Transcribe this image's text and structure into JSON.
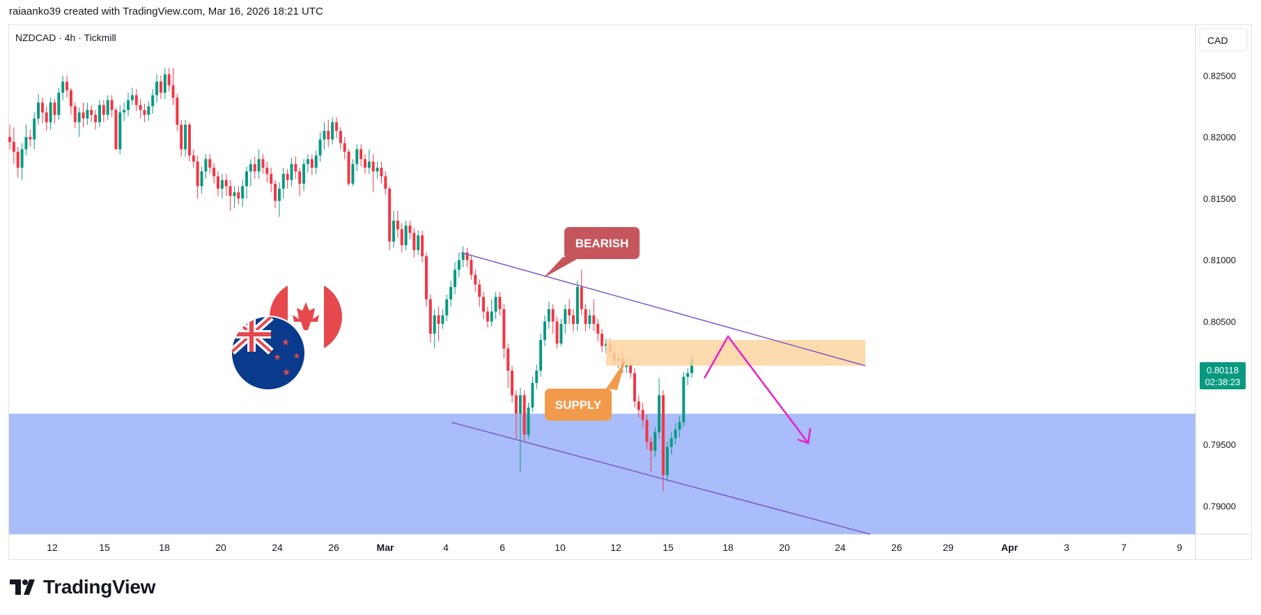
{
  "header": {
    "caption": "raiaanko39 created with TradingView.com, Mar 16, 2026 18:21 UTC"
  },
  "chart_data": {
    "type": "candlestick",
    "symbol_label": "NZDCAD · 4h · Tickmill",
    "currency": "CAD",
    "price_axis": {
      "ticks": [
        "0.82500",
        "0.82000",
        "0.81500",
        "0.81000",
        "0.80500",
        "0.79500",
        "0.79000"
      ],
      "range": [
        0.7877,
        0.8291
      ]
    },
    "time_axis": {
      "ticks": [
        "12",
        "15",
        "18",
        "20",
        "24",
        "26",
        "Mar",
        "4",
        "6",
        "10",
        "12",
        "15",
        "18",
        "20",
        "24",
        "26",
        "29",
        "Apr",
        "3",
        "7",
        "9"
      ]
    },
    "last_price": "0.80118",
    "countdown": "02:38:23",
    "colors": {
      "up": "#089981",
      "down": "#f23645",
      "demand_zone": "#a8bdf9",
      "supply_zone": "#fdd5a0",
      "trendline": "#7e57c2",
      "projection": "#e91ec9",
      "bearish_label": "#c4565c",
      "supply_label": "#f29a4b",
      "price_badge": "#089981"
    },
    "demand_zone": {
      "from": 0.7877,
      "to": 0.7975
    },
    "supply_zone": {
      "from": 0.8014,
      "to": 0.8035
    },
    "candles": [
      [
        0.82,
        0.8196,
        0.821,
        0.819
      ],
      [
        0.8196,
        0.8188,
        0.8208,
        0.8178
      ],
      [
        0.8188,
        0.8175,
        0.8192,
        0.8167
      ],
      [
        0.8175,
        0.819,
        0.8195,
        0.8165
      ],
      [
        0.819,
        0.82,
        0.821,
        0.8185
      ],
      [
        0.82,
        0.8198,
        0.8206,
        0.8192
      ],
      [
        0.8198,
        0.8215,
        0.822,
        0.819
      ],
      [
        0.8215,
        0.8228,
        0.8235,
        0.821
      ],
      [
        0.8228,
        0.822,
        0.8232,
        0.8211
      ],
      [
        0.822,
        0.8212,
        0.8225,
        0.8205
      ],
      [
        0.8212,
        0.8228,
        0.8232,
        0.8206
      ],
      [
        0.8228,
        0.8218,
        0.8231,
        0.8211
      ],
      [
        0.8218,
        0.8236,
        0.824,
        0.8214
      ],
      [
        0.8236,
        0.8245,
        0.825,
        0.823
      ],
      [
        0.8245,
        0.8238,
        0.825,
        0.8232
      ],
      [
        0.8238,
        0.8225,
        0.824,
        0.8218
      ],
      [
        0.8225,
        0.8212,
        0.8228,
        0.8207
      ],
      [
        0.8212,
        0.822,
        0.8224,
        0.82
      ],
      [
        0.822,
        0.8215,
        0.8228,
        0.8208
      ],
      [
        0.8215,
        0.8222,
        0.8228,
        0.821
      ],
      [
        0.8222,
        0.8218,
        0.8226,
        0.8212
      ],
      [
        0.8218,
        0.8212,
        0.8222,
        0.8206
      ],
      [
        0.8212,
        0.8226,
        0.823,
        0.8208
      ],
      [
        0.8226,
        0.8218,
        0.823,
        0.8212
      ],
      [
        0.8218,
        0.823,
        0.8234,
        0.8214
      ],
      [
        0.823,
        0.8222,
        0.8234,
        0.8216
      ],
      [
        0.8222,
        0.819,
        0.8224,
        0.819
      ],
      [
        0.819,
        0.822,
        0.8226,
        0.8186
      ],
      [
        0.822,
        0.8222,
        0.8228,
        0.8213
      ],
      [
        0.8222,
        0.823,
        0.8236,
        0.8217
      ],
      [
        0.823,
        0.8234,
        0.824,
        0.8226
      ],
      [
        0.8234,
        0.8226,
        0.8239,
        0.8221
      ],
      [
        0.8226,
        0.8222,
        0.8231,
        0.8215
      ],
      [
        0.8222,
        0.8218,
        0.8227,
        0.8212
      ],
      [
        0.8218,
        0.8225,
        0.8229,
        0.8213
      ],
      [
        0.8225,
        0.8234,
        0.8239,
        0.8219
      ],
      [
        0.8234,
        0.8245,
        0.8251,
        0.8228
      ],
      [
        0.8245,
        0.8236,
        0.825,
        0.8231
      ],
      [
        0.8236,
        0.8251,
        0.8256,
        0.8231
      ],
      [
        0.8251,
        0.8242,
        0.8256,
        0.8237
      ],
      [
        0.8242,
        0.8232,
        0.8256,
        0.8226
      ],
      [
        0.8232,
        0.821,
        0.8235,
        0.8205
      ],
      [
        0.821,
        0.819,
        0.8214,
        0.8184
      ],
      [
        0.819,
        0.821,
        0.8214,
        0.8184
      ],
      [
        0.821,
        0.8185,
        0.8212,
        0.818
      ],
      [
        0.8185,
        0.818,
        0.819,
        0.8175
      ],
      [
        0.818,
        0.816,
        0.8185,
        0.815
      ],
      [
        0.816,
        0.8172,
        0.8176,
        0.8154
      ],
      [
        0.8172,
        0.8182,
        0.8186,
        0.8166
      ],
      [
        0.8182,
        0.8175,
        0.8186,
        0.817
      ],
      [
        0.8175,
        0.8168,
        0.8179,
        0.8162
      ],
      [
        0.8168,
        0.8158,
        0.8172,
        0.8152
      ],
      [
        0.8158,
        0.8165,
        0.817,
        0.815
      ],
      [
        0.8165,
        0.816,
        0.817,
        0.8152
      ],
      [
        0.816,
        0.8152,
        0.8165,
        0.814
      ],
      [
        0.8152,
        0.8155,
        0.816,
        0.8142
      ],
      [
        0.8155,
        0.815,
        0.816,
        0.8145
      ],
      [
        0.815,
        0.816,
        0.8165,
        0.8143
      ],
      [
        0.816,
        0.8172,
        0.8176,
        0.815
      ],
      [
        0.8172,
        0.8178,
        0.8182,
        0.816
      ],
      [
        0.8178,
        0.8172,
        0.8184,
        0.8166
      ],
      [
        0.8172,
        0.8182,
        0.819,
        0.8166
      ],
      [
        0.8182,
        0.8175,
        0.8186,
        0.817
      ],
      [
        0.8175,
        0.817,
        0.818,
        0.8163
      ],
      [
        0.817,
        0.8162,
        0.8175,
        0.8155
      ],
      [
        0.8162,
        0.8148,
        0.8165,
        0.8142
      ],
      [
        0.8148,
        0.8158,
        0.8163,
        0.8135
      ],
      [
        0.8158,
        0.817,
        0.8175,
        0.815
      ],
      [
        0.817,
        0.8165,
        0.8174,
        0.8158
      ],
      [
        0.8165,
        0.8178,
        0.8183,
        0.816
      ],
      [
        0.8178,
        0.8172,
        0.8184,
        0.8166
      ],
      [
        0.8172,
        0.8162,
        0.8175,
        0.8152
      ],
      [
        0.8162,
        0.8178,
        0.8182,
        0.8156
      ],
      [
        0.8178,
        0.8182,
        0.8186,
        0.8171
      ],
      [
        0.8182,
        0.8175,
        0.8186,
        0.8169
      ],
      [
        0.8175,
        0.8185,
        0.8189,
        0.817
      ],
      [
        0.8185,
        0.8198,
        0.8204,
        0.818
      ],
      [
        0.8198,
        0.8205,
        0.8212,
        0.819
      ],
      [
        0.8205,
        0.8198,
        0.8214,
        0.8192
      ],
      [
        0.8198,
        0.8212,
        0.8216,
        0.8194
      ],
      [
        0.8212,
        0.8205,
        0.8216,
        0.8199
      ],
      [
        0.8205,
        0.8195,
        0.8208,
        0.819
      ],
      [
        0.8195,
        0.8188,
        0.82,
        0.8182
      ],
      [
        0.8188,
        0.8162,
        0.819,
        0.816
      ],
      [
        0.8162,
        0.8178,
        0.8182,
        0.816
      ],
      [
        0.8178,
        0.819,
        0.8194,
        0.8172
      ],
      [
        0.819,
        0.8182,
        0.8194,
        0.8176
      ],
      [
        0.8182,
        0.8175,
        0.8186,
        0.817
      ],
      [
        0.8175,
        0.818,
        0.819,
        0.817
      ],
      [
        0.818,
        0.8172,
        0.8186,
        0.8155
      ],
      [
        0.8172,
        0.8175,
        0.818,
        0.8166
      ],
      [
        0.8175,
        0.8168,
        0.818,
        0.8162
      ],
      [
        0.8168,
        0.8158,
        0.8172,
        0.8153
      ],
      [
        0.8158,
        0.8115,
        0.816,
        0.8108
      ],
      [
        0.8115,
        0.8132,
        0.814,
        0.811
      ],
      [
        0.8132,
        0.8125,
        0.814,
        0.8118
      ],
      [
        0.8125,
        0.8112,
        0.813,
        0.8106
      ],
      [
        0.8112,
        0.8128,
        0.8132,
        0.8108
      ],
      [
        0.8128,
        0.8122,
        0.8132,
        0.8117
      ],
      [
        0.8122,
        0.8108,
        0.8126,
        0.8102
      ],
      [
        0.8108,
        0.812,
        0.8124,
        0.8104
      ],
      [
        0.812,
        0.8103,
        0.8124,
        0.8098
      ],
      [
        0.8103,
        0.8068,
        0.8106,
        0.8062
      ],
      [
        0.8068,
        0.804,
        0.8072,
        0.8033
      ],
      [
        0.804,
        0.8055,
        0.806,
        0.8028
      ],
      [
        0.8055,
        0.8048,
        0.8062,
        0.8034
      ],
      [
        0.8048,
        0.8055,
        0.806,
        0.8044
      ],
      [
        0.8055,
        0.8068,
        0.8072,
        0.805
      ],
      [
        0.8068,
        0.8078,
        0.8083,
        0.8062
      ],
      [
        0.8078,
        0.8092,
        0.8098,
        0.8072
      ],
      [
        0.8092,
        0.81,
        0.8106,
        0.8086
      ],
      [
        0.81,
        0.8106,
        0.8111,
        0.8094
      ],
      [
        0.8106,
        0.81,
        0.811,
        0.8094
      ],
      [
        0.81,
        0.8088,
        0.8104,
        0.8084
      ],
      [
        0.8088,
        0.808,
        0.8092,
        0.8074
      ],
      [
        0.808,
        0.807,
        0.8084,
        0.8062
      ],
      [
        0.807,
        0.8058,
        0.8074,
        0.8052
      ],
      [
        0.8058,
        0.805,
        0.8062,
        0.8045
      ],
      [
        0.805,
        0.8058,
        0.8068,
        0.8046
      ],
      [
        0.8058,
        0.807,
        0.8074,
        0.8052
      ],
      [
        0.807,
        0.806,
        0.8074,
        0.8055
      ],
      [
        0.806,
        0.8028,
        0.8064,
        0.802
      ],
      [
        0.8028,
        0.801,
        0.8032,
        0.7996
      ],
      [
        0.801,
        0.799,
        0.8014,
        0.7984
      ],
      [
        0.799,
        0.7975,
        0.7994,
        0.7955
      ],
      [
        0.7975,
        0.799,
        0.7996,
        0.7928
      ],
      [
        0.799,
        0.7958,
        0.7994,
        0.7952
      ],
      [
        0.7958,
        0.798,
        0.7984,
        0.7955
      ],
      [
        0.798,
        0.8,
        0.8005,
        0.7976
      ],
      [
        0.8,
        0.801,
        0.8015,
        0.7995
      ],
      [
        0.801,
        0.8035,
        0.804,
        0.8005
      ],
      [
        0.8035,
        0.805,
        0.8055,
        0.803
      ],
      [
        0.805,
        0.806,
        0.8066,
        0.8044
      ],
      [
        0.806,
        0.805,
        0.8064,
        0.804
      ],
      [
        0.805,
        0.8032,
        0.8054,
        0.8028
      ],
      [
        0.8032,
        0.8048,
        0.8052,
        0.803
      ],
      [
        0.8048,
        0.806,
        0.8064,
        0.804
      ],
      [
        0.806,
        0.8055,
        0.8068,
        0.8048
      ],
      [
        0.8055,
        0.8048,
        0.806,
        0.8042
      ],
      [
        0.8048,
        0.8078,
        0.8083,
        0.8042
      ],
      [
        0.8078,
        0.806,
        0.8092,
        0.8055
      ],
      [
        0.806,
        0.8048,
        0.8064,
        0.8042
      ],
      [
        0.8048,
        0.8055,
        0.806,
        0.8044
      ],
      [
        0.8055,
        0.8048,
        0.8068,
        0.8042
      ],
      [
        0.8048,
        0.804,
        0.8052,
        0.8034
      ],
      [
        0.804,
        0.803,
        0.8044,
        0.8025
      ],
      [
        0.803,
        0.8032,
        0.8036,
        0.8024
      ],
      [
        0.8032,
        0.8025,
        0.8036,
        0.802
      ],
      [
        0.8025,
        0.8018,
        0.803,
        0.8014
      ],
      [
        0.8018,
        0.802,
        0.8025,
        0.8012
      ],
      [
        0.802,
        0.8013,
        0.8026,
        0.8008
      ],
      [
        0.8013,
        0.8015,
        0.802,
        0.8008
      ],
      [
        0.8015,
        0.8008,
        0.802,
        0.8004
      ],
      [
        0.8008,
        0.7985,
        0.8012,
        0.798
      ],
      [
        0.7985,
        0.7978,
        0.799,
        0.7972
      ],
      [
        0.7978,
        0.797,
        0.7984,
        0.7964
      ],
      [
        0.797,
        0.7952,
        0.7974,
        0.7946
      ],
      [
        0.7952,
        0.7945,
        0.7956,
        0.7928
      ],
      [
        0.7945,
        0.796,
        0.7964,
        0.794
      ],
      [
        0.796,
        0.799,
        0.8004,
        0.7955
      ],
      [
        0.799,
        0.7925,
        0.7994,
        0.7912
      ],
      [
        0.7925,
        0.7948,
        0.7952,
        0.792
      ],
      [
        0.7948,
        0.7955,
        0.796,
        0.7942
      ],
      [
        0.7955,
        0.7962,
        0.7967,
        0.795
      ],
      [
        0.7962,
        0.7968,
        0.7973,
        0.7956
      ],
      [
        0.7968,
        0.8005,
        0.8009,
        0.7964
      ],
      [
        0.8005,
        0.8008,
        0.8012,
        0.7998
      ],
      [
        0.8008,
        0.802,
        0.8024,
        0.8004
      ]
    ],
    "annotations": {
      "bearish_label": "BEARISH",
      "supply_label": "SUPPLY",
      "upper_trendline": [
        [
          0.8106,
          0.8014
        ]
      ],
      "lower_trendline": [
        [
          0.7968,
          0.7877
        ]
      ]
    }
  },
  "footer": {
    "brand": "TradingView"
  }
}
